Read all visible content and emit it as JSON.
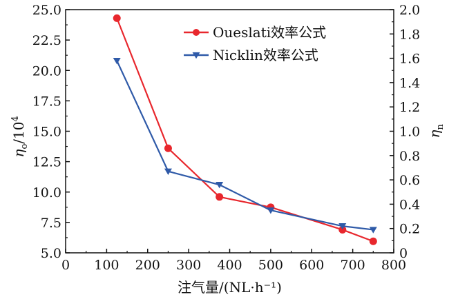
{
  "chart_data": {
    "type": "line",
    "x": [
      125,
      250,
      375,
      500,
      675,
      750
    ],
    "xlabel": "注气量/(NL·h⁻¹)",
    "xlim": [
      0,
      800
    ],
    "xticks": [
      "0",
      "100",
      "200",
      "300",
      "400",
      "500",
      "600",
      "700",
      "800"
    ],
    "ylabel_left": {
      "eta": "η",
      "sub": "o",
      "suffix": "/10",
      "sup": "4"
    },
    "ylim_left": [
      5.0,
      25.0
    ],
    "yticks_left": [
      "5.0",
      "7.5",
      "10.0",
      "12.5",
      "15.0",
      "17.5",
      "20.0",
      "22.5",
      "25.0"
    ],
    "ylabel_right": {
      "eta": "η",
      "sub": "n"
    },
    "ylim_right": [
      0,
      2.0
    ],
    "yticks_right": [
      "0",
      "0.2",
      "0.4",
      "0.6",
      "0.8",
      "1.0",
      "1.2",
      "1.4",
      "1.6",
      "1.8",
      "2.0"
    ],
    "grid": false,
    "legend_position": "top-right",
    "series": [
      {
        "name": "Oueslati效率公式",
        "axis": "left",
        "color": "#e8272d",
        "marker": "circle",
        "values": [
          24.3,
          13.6,
          9.6,
          8.75,
          6.9,
          5.95
        ]
      },
      {
        "name": "Nicklin效率公式",
        "axis": "right",
        "color": "#2f5aa8",
        "marker": "triangle-down",
        "values": [
          1.58,
          0.67,
          0.56,
          0.35,
          0.22,
          0.19
        ]
      }
    ]
  }
}
